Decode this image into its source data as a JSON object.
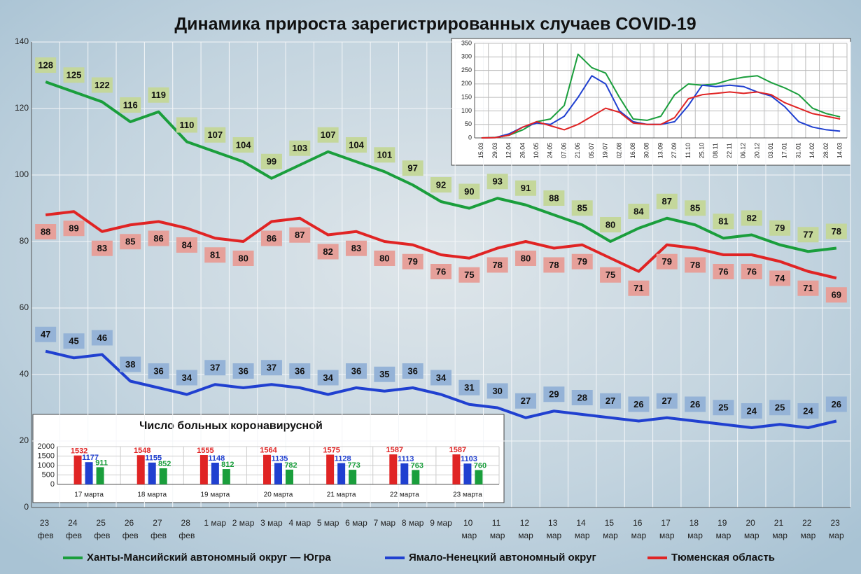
{
  "chart_data": [
    {
      "type": "line",
      "title": "Динамика прироста зарегистрированных случаев COVID-19",
      "categories": [
        "23 фев",
        "24 фев",
        "25 фев",
        "26 фев",
        "27 фев",
        "28 фев",
        "1 мар",
        "2 мар",
        "3 мар",
        "4 мар",
        "5 мар",
        "6 мар",
        "7 мар",
        "8 мар",
        "9 мар",
        "10 мар",
        "11 мар",
        "12 мар",
        "13 мар",
        "14 мар",
        "15 мар",
        "16 мар",
        "17 мар",
        "18 мар",
        "19 мар",
        "20 мар",
        "21 мар",
        "22 мар",
        "23 мар"
      ],
      "series": [
        {
          "name": "Ханты-Мансийский автономный округ — Югра",
          "color": "#1a9e3c",
          "label_color": "#c4d79b",
          "values": [
            128,
            125,
            122,
            116,
            119,
            110,
            107,
            104,
            99,
            103,
            107,
            104,
            101,
            97,
            92,
            90,
            93,
            91,
            88,
            85,
            80,
            84,
            87,
            85,
            81,
            82,
            79,
            77,
            78
          ]
        },
        {
          "name": "Ямало-Ненецкий автономный округ",
          "color": "#2040d0",
          "label_color": "#95b3d7",
          "values": [
            47,
            45,
            46,
            38,
            36,
            34,
            37,
            36,
            37,
            36,
            34,
            36,
            35,
            36,
            34,
            31,
            30,
            27,
            29,
            28,
            27,
            26,
            27,
            26,
            25,
            24,
            25,
            24,
            26
          ]
        },
        {
          "name": "Тюменская область",
          "color": "#e02424",
          "label_color": "#e6a09a",
          "values": [
            88,
            89,
            83,
            85,
            86,
            84,
            81,
            80,
            86,
            87,
            82,
            83,
            80,
            79,
            76,
            75,
            78,
            80,
            78,
            79,
            75,
            71,
            79,
            78,
            76,
            76,
            74,
            71,
            69
          ]
        }
      ],
      "ylim": [
        0,
        140
      ],
      "yticks": [
        0,
        20,
        40,
        60,
        80,
        100,
        120,
        140
      ],
      "grid": true,
      "data_labels": true,
      "legend": "bottom"
    },
    {
      "type": "line",
      "categories": [
        "15.03",
        "29.03",
        "12.04",
        "26.04",
        "10.05",
        "24.05",
        "07.06",
        "21.06",
        "05.07",
        "19.07",
        "02.08",
        "16.08",
        "30.08",
        "13.09",
        "27.09",
        "11.10",
        "25.10",
        "08.11",
        "22.11",
        "06.12",
        "20.12",
        "03.01",
        "17.01",
        "31.01",
        "14.02",
        "28.02",
        "14.03"
      ],
      "series": [
        {
          "color": "#1a9e3c",
          "values": [
            0,
            2,
            10,
            30,
            60,
            70,
            120,
            310,
            260,
            240,
            150,
            70,
            65,
            80,
            160,
            200,
            195,
            200,
            215,
            225,
            230,
            205,
            185,
            160,
            110,
            90,
            78
          ]
        },
        {
          "color": "#2040d0",
          "values": [
            0,
            1,
            15,
            40,
            55,
            50,
            80,
            150,
            230,
            200,
            100,
            60,
            50,
            50,
            60,
            120,
            195,
            190,
            195,
            190,
            170,
            155,
            115,
            60,
            40,
            30,
            25
          ]
        },
        {
          "color": "#e02424",
          "values": [
            0,
            1,
            10,
            40,
            60,
            45,
            30,
            50,
            80,
            110,
            95,
            55,
            50,
            50,
            75,
            145,
            160,
            165,
            170,
            165,
            170,
            160,
            130,
            110,
            90,
            80,
            70
          ]
        }
      ],
      "ylim": [
        0,
        350
      ],
      "yticks": [
        0,
        50,
        100,
        150,
        200,
        250,
        300,
        350
      ],
      "grid": true,
      "data_labels": false
    },
    {
      "type": "bar",
      "title": "Число больных коронавирусной",
      "categories": [
        "17 марта",
        "18 марта",
        "19 марта",
        "20 марта",
        "21 марта",
        "22 марта",
        "23 марта"
      ],
      "series": [
        {
          "color": "#e02424",
          "values": [
            1532,
            1548,
            1555,
            1564,
            1575,
            1587,
            1587
          ]
        },
        {
          "color": "#2040d0",
          "values": [
            1177,
            1155,
            1148,
            1135,
            1128,
            1113,
            1103
          ]
        },
        {
          "color": "#1a9e3c",
          "values": [
            911,
            852,
            812,
            782,
            773,
            763,
            760
          ]
        }
      ],
      "ylim": [
        0,
        2000
      ],
      "yticks": [
        0,
        500,
        1000,
        1500,
        2000
      ],
      "grid": true,
      "data_labels": true
    }
  ]
}
